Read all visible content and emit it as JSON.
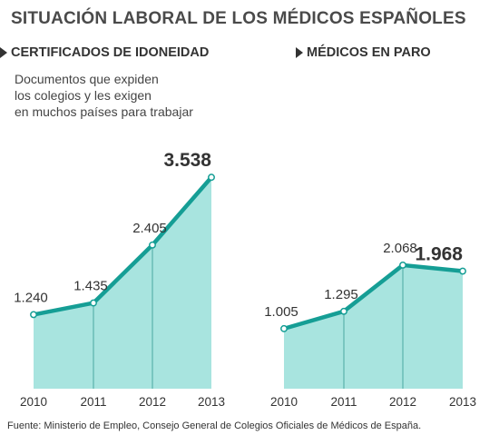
{
  "title": "SITUACIÓN LABORAL DE LOS MÉDICOS ESPAÑOLES",
  "source": "Fuente: Ministerio de Empleo, Consejo General de Colegios Oficiales de Médicos de España.",
  "colors": {
    "area": "#a8e4df",
    "line": "#159e95",
    "divider": "#4aa7a0",
    "text": "#333333",
    "marker_fill": "#ffffff"
  },
  "icons": {
    "header_marker": "arrow-right-icon"
  },
  "chart_data": [
    {
      "type": "area",
      "title": "CERTIFICADOS DE IDONEIDAD",
      "subtitle": [
        "Documentos que expiden",
        "los colegios y les exigen",
        "en muchos países para trabajar"
      ],
      "categories": [
        "2010",
        "2011",
        "2012",
        "2013"
      ],
      "values": [
        1240,
        1435,
        2405,
        3538
      ],
      "value_labels": [
        "1.240",
        "1.435",
        "2.405",
        "3.538"
      ],
      "highlight_index": 3,
      "ylim": [
        0,
        3800
      ],
      "grid": false
    },
    {
      "type": "area",
      "title": "MÉDICOS EN PARO",
      "categories": [
        "2010",
        "2011",
        "2012",
        "2013"
      ],
      "values": [
        1005,
        1295,
        2068,
        1968
      ],
      "value_labels": [
        "1.005",
        "1.295",
        "2.068",
        "1.968"
      ],
      "highlight_index": 3,
      "ylim": [
        0,
        3800
      ],
      "grid": false
    }
  ]
}
